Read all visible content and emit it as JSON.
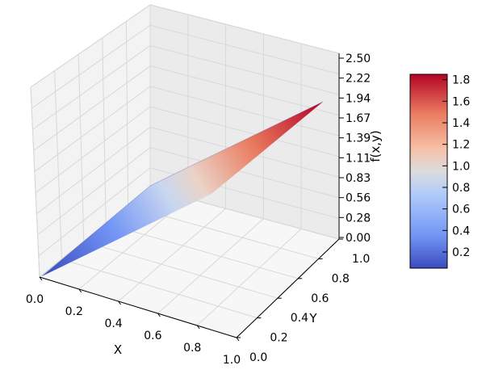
{
  "chart_data": {
    "type": "surface",
    "function_label": "f(x,y)",
    "x_axis": {
      "label": "X",
      "range": [
        0.0,
        1.0
      ],
      "ticks": [
        "0.0",
        "0.2",
        "0.4",
        "0.6",
        "0.8",
        "1.0"
      ]
    },
    "y_axis": {
      "label": "Y",
      "range": [
        0.0,
        1.0
      ],
      "ticks": [
        "0.0",
        "0.2",
        "0.4",
        "0.6",
        "0.8",
        "1.0"
      ]
    },
    "z_axis": {
      "label": "f(x,y)",
      "range": [
        0.0,
        2.5
      ],
      "ticks": [
        "0.00",
        "0.28",
        "0.56",
        "0.83",
        "1.11",
        "1.39",
        "1.67",
        "1.94",
        "2.22",
        "2.50"
      ]
    },
    "colorbar": {
      "colormap": "coolwarm",
      "range": [
        0.05,
        1.85
      ],
      "ticks": [
        "0.2",
        "0.4",
        "0.6",
        "0.8",
        "1.0",
        "1.2",
        "1.4",
        "1.6",
        "1.8"
      ],
      "colors": [
        "#3b4cc0",
        "#7396f5",
        "#b0cbfb",
        "#dcdddd",
        "#f6bfa6",
        "#ea7b60",
        "#b40426"
      ]
    },
    "surface": {
      "description_values": "f rises roughly linearly with x; value ~0.05 at x=0 up to ~1.85 at x=1",
      "samples_x": [
        0.0,
        0.5,
        1.0
      ],
      "samples_f": [
        0.05,
        0.95,
        1.85
      ]
    },
    "grid": true
  }
}
